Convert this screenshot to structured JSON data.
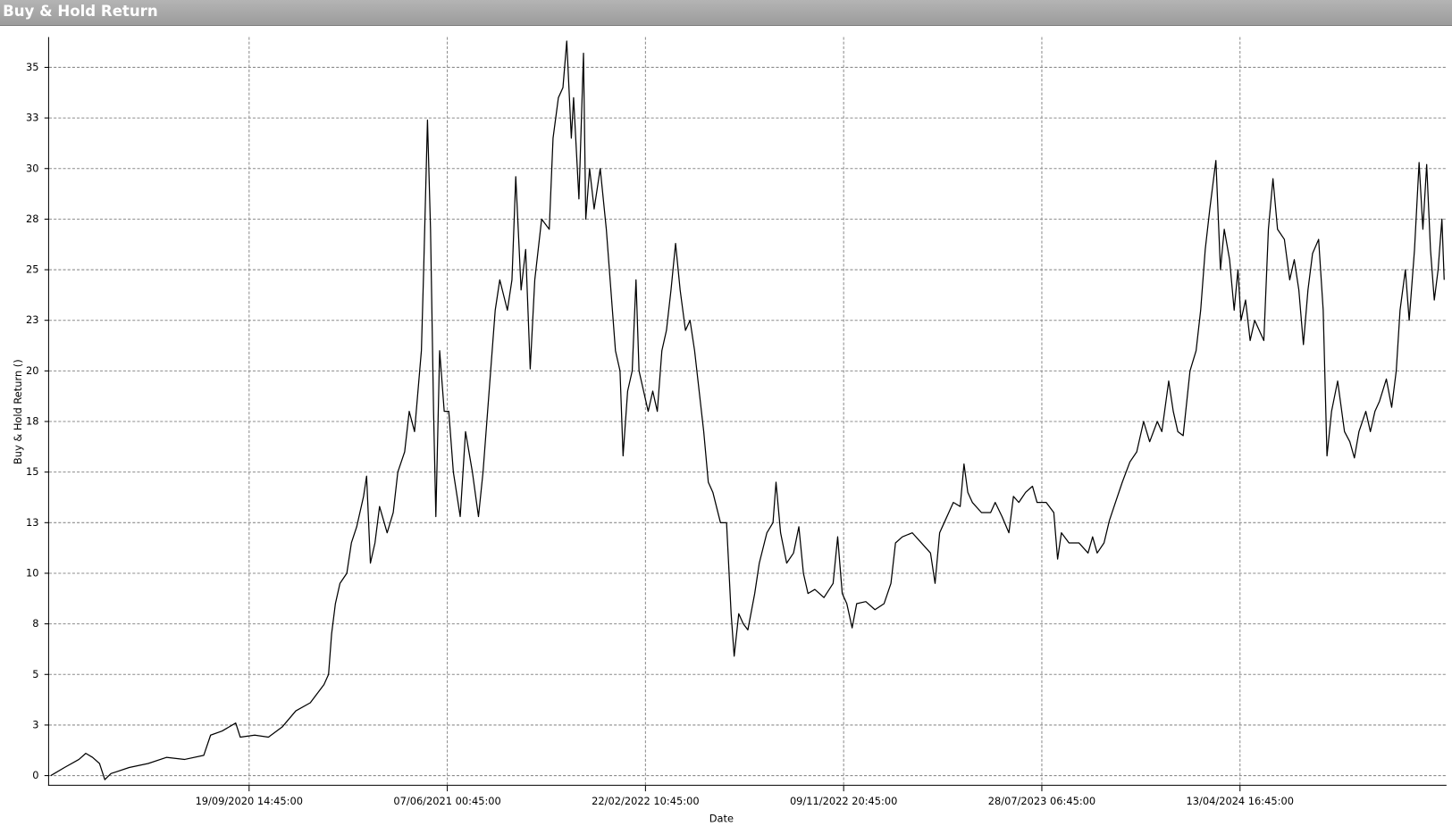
{
  "chart_data": {
    "type": "line",
    "title": "Buy & Hold Return",
    "x_label": "Date",
    "y_label": "Buy & Hold Return ()",
    "color": "#000000",
    "grid": true,
    "xlim": [
      "03/01/2020 04:45:00",
      "07/01/2025 14:45:00"
    ],
    "xticks": [
      "19/09/2020 14:45:00",
      "07/06/2021 00:45:00",
      "22/02/2022 10:45:00",
      "09/11/2022 20:45:00",
      "28/07/2023 06:45:00",
      "13/04/2024 16:45:00"
    ],
    "ylim": [
      -0.5,
      36.5
    ],
    "yticks": [
      0,
      {
        "value": 2.5,
        "label": "3"
      },
      5,
      {
        "value": 7.5,
        "label": "8"
      },
      10,
      {
        "value": 12.5,
        "label": "13"
      },
      15,
      {
        "value": 17.5,
        "label": "18"
      },
      20,
      {
        "value": 22.5,
        "label": "23"
      },
      25,
      {
        "value": 27.5,
        "label": "28"
      },
      30,
      {
        "value": 32.5,
        "label": "33"
      },
      35
    ],
    "x": [
      "03/01/2020",
      "21/01/2020",
      "09/02/2020",
      "18/02/2020",
      "27/02/2020",
      "07/03/2020",
      "14/03/2020",
      "22/03/2020",
      "15/04/2020",
      "10/05/2020",
      "03/06/2020",
      "27/06/2020",
      "22/07/2020",
      "31/07/2020",
      "15/08/2020",
      "02/09/2020",
      "08/09/2020",
      "27/09/2020",
      "15/10/2020",
      "02/11/2020",
      "20/11/2020",
      "09/12/2020",
      "27/12/2020",
      "02/01/2021",
      "06/01/2021",
      "11/01/2021",
      "17/01/2021",
      "26/01/2021",
      "01/02/2021",
      "08/02/2021",
      "17/02/2021",
      "21/02/2021",
      "26/02/2021",
      "04/03/2021",
      "10/03/2021",
      "20/03/2021",
      "28/03/2021",
      "03/04/2021",
      "12/04/2021",
      "18/04/2021",
      "25/04/2021",
      "04/05/2021",
      "07/05/2021",
      "12/05/2021",
      "16/05/2021",
      "20/05/2021",
      "23/05/2021",
      "28/05/2021",
      "03/06/2021",
      "09/06/2021",
      "15/06/2021",
      "24/06/2021",
      "01/07/2021",
      "10/07/2021",
      "18/07/2021",
      "24/07/2021",
      "01/08/2021",
      "09/08/2021",
      "15/08/2021",
      "25/08/2021",
      "31/08/2021",
      "05/09/2021",
      "12/09/2021",
      "18/09/2021",
      "24/09/2021",
      "30/09/2021",
      "09/10/2021",
      "19/10/2021",
      "24/10/2021",
      "31/10/2021",
      "06/11/2021",
      "11/11/2021",
      "17/11/2021",
      "20/11/2021",
      "27/11/2021",
      "03/12/2021",
      "06/12/2021",
      "11/12/2021",
      "17/12/2021",
      "25/12/2021",
      "02/01/2022",
      "08/01/2022",
      "14/01/2022",
      "20/01/2022",
      "24/01/2022",
      "30/01/2022",
      "05/02/2022",
      "10/02/2022",
      "14/02/2022",
      "20/02/2022",
      "26/02/2022",
      "04/03/2022",
      "10/03/2022",
      "16/03/2022",
      "22/03/2022",
      "28/03/2022",
      "03/04/2022",
      "09/04/2022",
      "16/04/2022",
      "22/04/2022",
      "28/04/2022",
      "04/05/2022",
      "10/05/2022",
      "16/05/2022",
      "22/05/2022",
      "01/06/2022",
      "09/06/2022",
      "15/06/2022",
      "19/06/2022",
      "25/06/2022",
      "01/07/2022",
      "07/07/2022",
      "16/07/2022",
      "22/07/2022",
      "01/08/2022",
      "09/08/2022",
      "13/08/2022",
      "19/08/2022",
      "27/08/2022",
      "05/09/2022",
      "12/09/2022",
      "18/09/2022",
      "24/09/2022",
      "03/10/2022",
      "15/10/2022",
      "27/10/2022",
      "02/11/2022",
      "08/11/2022",
      "14/11/2022",
      "21/11/2022",
      "27/11/2022",
      "09/12/2022",
      "21/12/2022",
      "02/01/2023",
      "11/01/2023",
      "17/01/2023",
      "26/01/2023",
      "08/02/2023",
      "20/02/2023",
      "04/03/2023",
      "10/03/2023",
      "16/03/2023",
      "22/03/2023",
      "28/03/2023",
      "03/04/2023",
      "12/04/2023",
      "17/04/2023",
      "22/04/2023",
      "28/04/2023",
      "10/05/2023",
      "22/05/2023",
      "28/05/2023",
      "06/06/2023",
      "15/06/2023",
      "21/06/2023",
      "28/06/2023",
      "07/07/2023",
      "16/07/2023",
      "22/07/2023",
      "03/08/2023",
      "13/08/2023",
      "18/08/2023",
      "23/08/2023",
      "02/09/2023",
      "15/09/2023",
      "27/09/2023",
      "03/10/2023",
      "09/10/2023",
      "18/10/2023",
      "25/10/2023",
      "02/11/2023",
      "11/11/2023",
      "21/11/2023",
      "30/11/2023",
      "09/12/2023",
      "17/12/2023",
      "27/12/2023",
      "02/01/2024",
      "11/01/2024",
      "17/01/2024",
      "23/01/2024",
      "30/01/2024",
      "08/02/2024",
      "16/02/2024",
      "22/02/2024",
      "28/02/2024",
      "05/03/2024",
      "13/03/2024",
      "19/03/2024",
      "24/03/2024",
      "31/03/2024",
      "06/04/2024",
      "11/04/2024",
      "15/04/2024",
      "21/04/2024",
      "27/04/2024",
      "03/05/2024",
      "09/05/2024",
      "15/05/2024",
      "21/05/2024",
      "27/05/2024",
      "02/06/2024",
      "11/06/2024",
      "18/06/2024",
      "24/06/2024",
      "30/06/2024",
      "06/07/2024",
      "12/07/2024",
      "18/07/2024",
      "26/07/2024",
      "01/08/2024",
      "06/08/2024",
      "12/08/2024",
      "20/08/2024",
      "29/08/2024",
      "05/09/2024",
      "11/09/2024",
      "17/09/2024",
      "26/09/2024",
      "02/10/2024",
      "08/10/2024",
      "14/10/2024",
      "23/10/2024",
      "30/10/2024",
      "05/11/2024",
      "10/11/2024",
      "17/11/2024",
      "22/11/2024",
      "29/11/2024",
      "05/12/2024",
      "10/12/2024",
      "15/12/2024",
      "20/12/2024",
      "25/12/2024",
      "30/12/2024",
      "04/01/2025",
      "07/01/2025"
    ],
    "values": [
      0,
      0.4,
      0.8,
      1.1,
      0.9,
      0.6,
      -0.2,
      0.1,
      0.4,
      0.6,
      0.9,
      0.8,
      1.0,
      2.0,
      2.2,
      2.6,
      1.9,
      2.0,
      1.9,
      2.4,
      3.2,
      3.6,
      4.5,
      5.0,
      7,
      8.5,
      9.5,
      10,
      11.5,
      12.3,
      13.8,
      14.8,
      10.5,
      11.5,
      13.3,
      12,
      13,
      15,
      16,
      18,
      17,
      21,
      25,
      32.4,
      27,
      18,
      12.8,
      21,
      18,
      18,
      15,
      12.8,
      17,
      15,
      12.8,
      15,
      19,
      23,
      24.5,
      23,
      24.5,
      29.6,
      24,
      26,
      20.1,
      24.5,
      27.5,
      27,
      31.5,
      33.5,
      34,
      36.3,
      31.5,
      33.5,
      28.5,
      35.7,
      27.5,
      30,
      28,
      30,
      27,
      24,
      21,
      20,
      15.8,
      19,
      20,
      24.5,
      20,
      19,
      18,
      19,
      18,
      21,
      22,
      24,
      26.3,
      24,
      22,
      22.5,
      21,
      19,
      17,
      14.5,
      14,
      12.5,
      12.5,
      8,
      5.9,
      8,
      7.5,
      7.2,
      9,
      10.5,
      12,
      12.5,
      14.5,
      12,
      10.5,
      11,
      12.3,
      10,
      9,
      9.2,
      8.8,
      9.5,
      11.8,
      9,
      8.5,
      7.3,
      8.5,
      8.6,
      8.2,
      8.5,
      9.5,
      11.5,
      11.8,
      12,
      11.5,
      11,
      9.5,
      12,
      12.5,
      13,
      13.5,
      13.3,
      15.4,
      14,
      13.5,
      13,
      13,
      13.5,
      12.8,
      12,
      13.8,
      13.5,
      14,
      14.3,
      13.5,
      13.5,
      13,
      10.7,
      12,
      11.5,
      11.5,
      11,
      11.8,
      11,
      11.5,
      12.6,
      13.5,
      14.5,
      15.5,
      16,
      17.5,
      16.5,
      17.5,
      17,
      19.5,
      18,
      17,
      16.8,
      20,
      21,
      23,
      26,
      28,
      30.4,
      25,
      27,
      25.5,
      23,
      25,
      22.5,
      23.5,
      21.5,
      22.5,
      22,
      21.5,
      27,
      29.5,
      27,
      26.5,
      24.5,
      25.5,
      24,
      21.3,
      24,
      25.8,
      26.5,
      23,
      15.8,
      18,
      19.5,
      17,
      16.5,
      15.7,
      17,
      18,
      17,
      18,
      18.5,
      19.6,
      18.2,
      20,
      23,
      25,
      22.5,
      26,
      30.3,
      27,
      30.2,
      26,
      23.5,
      25,
      27.5,
      24.5
    ]
  }
}
